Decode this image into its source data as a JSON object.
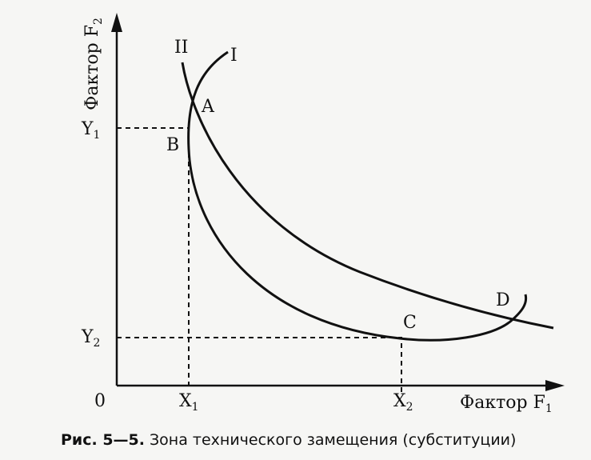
{
  "axes": {
    "y_label": {
      "text": "Фактор F",
      "sub": "2"
    },
    "x_label": {
      "text": "Фактор F",
      "sub": "1"
    },
    "origin": "0"
  },
  "levels": {
    "y1": {
      "text": "Y",
      "sub": "1"
    },
    "y2": {
      "text": "Y",
      "sub": "2"
    },
    "x1": {
      "text": "X",
      "sub": "1"
    },
    "x2": {
      "text": "X",
      "sub": "2"
    }
  },
  "curves": {
    "curve_1": "I",
    "curve_2": "II"
  },
  "points": {
    "a": "A",
    "b": "B",
    "c": "C",
    "d": "D"
  },
  "caption": {
    "figure": "Рис. 5—5.",
    "text": "Зона технического замещения (субституции)"
  }
}
